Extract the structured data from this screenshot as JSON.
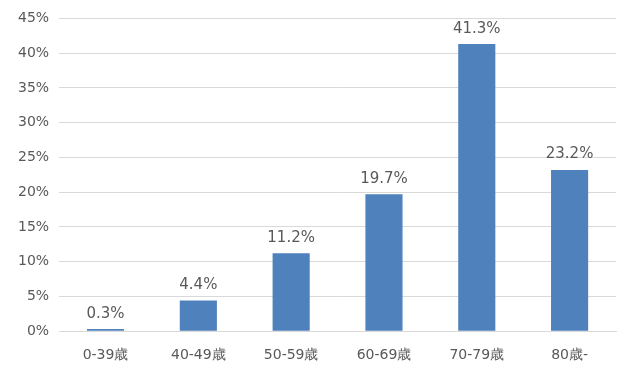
{
  "chart_data": {
    "type": "bar",
    "categories": [
      "0-39歳",
      "40-49歳",
      "50-59歳",
      "60-69歳",
      "70-79歳",
      "80歳-"
    ],
    "values": [
      0.3,
      4.4,
      11.2,
      19.7,
      41.3,
      23.2
    ],
    "value_labels": [
      "0.3%",
      "4.4%",
      "11.2%",
      "19.7%",
      "41.3%",
      "23.2%"
    ],
    "data_labels": true,
    "color": "#4f81bd",
    "ylim": [
      0,
      45
    ],
    "yticks": [
      {
        "value": 0,
        "label": "0%"
      },
      {
        "value": 5,
        "label": "5%"
      },
      {
        "value": 10,
        "label": "10%"
      },
      {
        "value": 15,
        "label": "15%"
      },
      {
        "value": 20,
        "label": "20%"
      },
      {
        "value": 25,
        "label": "25%"
      },
      {
        "value": 30,
        "label": "30%"
      },
      {
        "value": 35,
        "label": "35%"
      },
      {
        "value": 40,
        "label": "40%"
      },
      {
        "value": 45,
        "label": "45%"
      }
    ],
    "grid": true
  }
}
